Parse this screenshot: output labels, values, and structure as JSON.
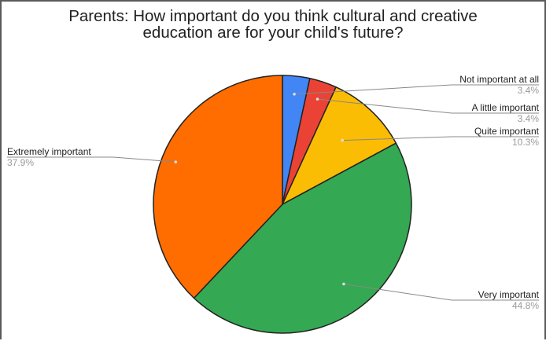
{
  "chart_data": {
    "type": "pie",
    "title_lines": [
      "Parents: How important do you think cultural and creative",
      "education are for your child's future?"
    ],
    "title": "Parents: How important do you think cultural and creative education are for your child's future?",
    "slices": [
      {
        "label": "Not important at all",
        "value": 3.4,
        "display": "3.4%",
        "color": "#4285f4"
      },
      {
        "label": "A little important",
        "value": 3.4,
        "display": "3.4%",
        "color": "#ea4335"
      },
      {
        "label": "Quite important",
        "value": 10.3,
        "display": "10.3%",
        "color": "#fbbc04"
      },
      {
        "label": "Very important",
        "value": 44.8,
        "display": "44.8%",
        "color": "#34a853"
      },
      {
        "label": "Extremely important",
        "value": 37.9,
        "display": "37.9%",
        "color": "#ff6d01"
      }
    ],
    "legend": "none",
    "start_angle": "12 o'clock, clockwise"
  }
}
